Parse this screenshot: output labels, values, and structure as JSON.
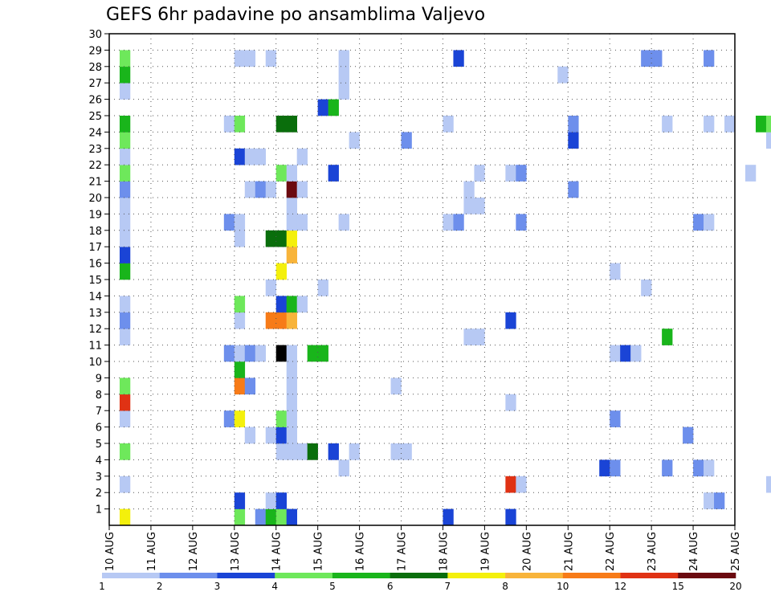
{
  "chart_data": {
    "type": "heatmap",
    "title": "GEFS 6hr padavine po ansamblima Valjevo",
    "x_tick_labels": [
      "10 AUG",
      "11 AUG",
      "12 AUG",
      "13 AUG",
      "14 AUG",
      "15 AUG",
      "16 AUG",
      "17 AUG",
      "18 AUG",
      "19 AUG",
      "20 AUG",
      "21 AUG",
      "22 AUG",
      "23 AUG",
      "24 AUG",
      "25 AUG"
    ],
    "y_tick_labels": [
      "1",
      "2",
      "3",
      "4",
      "5",
      "6",
      "7",
      "8",
      "9",
      "10",
      "11",
      "12",
      "13",
      "14",
      "15",
      "16",
      "17",
      "18",
      "19",
      "20",
      "21",
      "22",
      "23",
      "24",
      "25",
      "26",
      "27",
      "28",
      "29",
      "30"
    ],
    "xlim": [
      0,
      60
    ],
    "ylim": [
      0,
      30
    ],
    "x_unit": "6-hour steps from 10 AUG",
    "y_unit": "ensemble member",
    "grid": "dotted",
    "legend": {
      "placement": "bottom",
      "thresholds": [
        "1",
        "2",
        "3",
        "4",
        "5",
        "6",
        "7",
        "8",
        "10",
        "12",
        "15",
        "20"
      ],
      "colors": [
        "#b7c9f4",
        "#6d8fec",
        "#1a44d6",
        "#6ee85b",
        "#19b51b",
        "#0a6e0c",
        "#f4f00c",
        "#f8b43a",
        "#f77b18",
        "#e03214",
        "#6b0a10"
      ]
    },
    "cells": [
      [
        1,
        0,
        6
      ],
      [
        1,
        2,
        0
      ],
      [
        1,
        4,
        3
      ],
      [
        1,
        6,
        0
      ],
      [
        1,
        7,
        9
      ],
      [
        1,
        8,
        3
      ],
      [
        1,
        11,
        0
      ],
      [
        1,
        12,
        1
      ],
      [
        1,
        13,
        0
      ],
      [
        1,
        15,
        4
      ],
      [
        1,
        16,
        2
      ],
      [
        1,
        17,
        0
      ],
      [
        1,
        18,
        0
      ],
      [
        1,
        19,
        0
      ],
      [
        1,
        20,
        1
      ],
      [
        1,
        21,
        3
      ],
      [
        1,
        22,
        0
      ],
      [
        1,
        23,
        3
      ],
      [
        1,
        24,
        4
      ],
      [
        1,
        26,
        0
      ],
      [
        1,
        27,
        4
      ],
      [
        1,
        28,
        3
      ],
      [
        11,
        6,
        1
      ],
      [
        11,
        10,
        1
      ],
      [
        11,
        18,
        1
      ],
      [
        11,
        24,
        0
      ],
      [
        12,
        0,
        3
      ],
      [
        12,
        1,
        2
      ],
      [
        12,
        6,
        6
      ],
      [
        12,
        8,
        8
      ],
      [
        12,
        9,
        4
      ],
      [
        12,
        10,
        0
      ],
      [
        12,
        12,
        0
      ],
      [
        12,
        13,
        3
      ],
      [
        12,
        17,
        0
      ],
      [
        12,
        18,
        0
      ],
      [
        12,
        22,
        2
      ],
      [
        12,
        24,
        3
      ],
      [
        12,
        28,
        0
      ],
      [
        13,
        5,
        0
      ],
      [
        13,
        8,
        1
      ],
      [
        13,
        10,
        1
      ],
      [
        13,
        20,
        0
      ],
      [
        13,
        22,
        0
      ],
      [
        13,
        28,
        0
      ],
      [
        14,
        0,
        1
      ],
      [
        14,
        10,
        0
      ],
      [
        14,
        20,
        1
      ],
      [
        14,
        22,
        0
      ],
      [
        15,
        0,
        4
      ],
      [
        15,
        1,
        0
      ],
      [
        15,
        5,
        0
      ],
      [
        15,
        12,
        8
      ],
      [
        15,
        14,
        0
      ],
      [
        15,
        17,
        5
      ],
      [
        15,
        20,
        0
      ],
      [
        15,
        28,
        0
      ],
      [
        16,
        0,
        3
      ],
      [
        16,
        1,
        2
      ],
      [
        16,
        4,
        0
      ],
      [
        16,
        5,
        2
      ],
      [
        16,
        6,
        3
      ],
      [
        16,
        10,
        11
      ],
      [
        16,
        12,
        8
      ],
      [
        16,
        13,
        2
      ],
      [
        16,
        15,
        6
      ],
      [
        16,
        17,
        5
      ],
      [
        16,
        21,
        3
      ],
      [
        16,
        24,
        5
      ],
      [
        17,
        0,
        2
      ],
      [
        17,
        4,
        0
      ],
      [
        17,
        5,
        0
      ],
      [
        17,
        6,
        0
      ],
      [
        17,
        7,
        0
      ],
      [
        17,
        8,
        0
      ],
      [
        17,
        9,
        0
      ],
      [
        17,
        10,
        0
      ],
      [
        17,
        12,
        7
      ],
      [
        17,
        13,
        4
      ],
      [
        17,
        16,
        7
      ],
      [
        17,
        17,
        6
      ],
      [
        17,
        18,
        0
      ],
      [
        17,
        19,
        0
      ],
      [
        17,
        20,
        10
      ],
      [
        17,
        21,
        0
      ],
      [
        17,
        24,
        5
      ],
      [
        18,
        4,
        0
      ],
      [
        18,
        13,
        0
      ],
      [
        18,
        18,
        0
      ],
      [
        18,
        20,
        0
      ],
      [
        18,
        22,
        0
      ],
      [
        19,
        4,
        5
      ],
      [
        19,
        10,
        4
      ],
      [
        20,
        10,
        4
      ],
      [
        20,
        14,
        0
      ],
      [
        20,
        25,
        2
      ],
      [
        21,
        4,
        2
      ],
      [
        21,
        21,
        2
      ],
      [
        21,
        25,
        4
      ],
      [
        22,
        3,
        0
      ],
      [
        22,
        18,
        0
      ],
      [
        22,
        26,
        0
      ],
      [
        22,
        27,
        0
      ],
      [
        22,
        28,
        0
      ],
      [
        23,
        4,
        0
      ],
      [
        23,
        23,
        0
      ],
      [
        27,
        4,
        0
      ],
      [
        27,
        8,
        0
      ],
      [
        28,
        4,
        0
      ],
      [
        28,
        23,
        1
      ],
      [
        32,
        0,
        2
      ],
      [
        32,
        18,
        0
      ],
      [
        32,
        24,
        0
      ],
      [
        33,
        18,
        1
      ],
      [
        33,
        28,
        2
      ],
      [
        34,
        11,
        0
      ],
      [
        34,
        19,
        0
      ],
      [
        34,
        20,
        0
      ],
      [
        35,
        11,
        0
      ],
      [
        35,
        19,
        0
      ],
      [
        35,
        21,
        0
      ],
      [
        38,
        0,
        2
      ],
      [
        38,
        2,
        9
      ],
      [
        38,
        7,
        0
      ],
      [
        38,
        12,
        2
      ],
      [
        38,
        21,
        0
      ],
      [
        39,
        2,
        0
      ],
      [
        39,
        18,
        1
      ],
      [
        39,
        21,
        1
      ],
      [
        43,
        27,
        0
      ],
      [
        44,
        20,
        1
      ],
      [
        44,
        23,
        2
      ],
      [
        44,
        24,
        1
      ],
      [
        47,
        3,
        2
      ],
      [
        48,
        3,
        1
      ],
      [
        48,
        6,
        1
      ],
      [
        48,
        10,
        0
      ],
      [
        48,
        15,
        0
      ],
      [
        49,
        10,
        2
      ],
      [
        50,
        10,
        0
      ],
      [
        51,
        14,
        0
      ],
      [
        51,
        28,
        1
      ],
      [
        52,
        28,
        1
      ],
      [
        53,
        3,
        1
      ],
      [
        53,
        11,
        4
      ],
      [
        53,
        24,
        0
      ],
      [
        55,
        5,
        1
      ],
      [
        56,
        3,
        1
      ],
      [
        56,
        18,
        1
      ],
      [
        57,
        1,
        0
      ],
      [
        57,
        3,
        0
      ],
      [
        57,
        18,
        0
      ],
      [
        57,
        24,
        0
      ],
      [
        57,
        28,
        1
      ],
      [
        58,
        1,
        1
      ],
      [
        59,
        24,
        0
      ],
      [
        61,
        21,
        0
      ],
      [
        62,
        24,
        4
      ],
      [
        63,
        2,
        0
      ],
      [
        63,
        23,
        0
      ],
      [
        63,
        24,
        3
      ],
      [
        65,
        23,
        0
      ],
      [
        67,
        13,
        0
      ]
    ]
  }
}
